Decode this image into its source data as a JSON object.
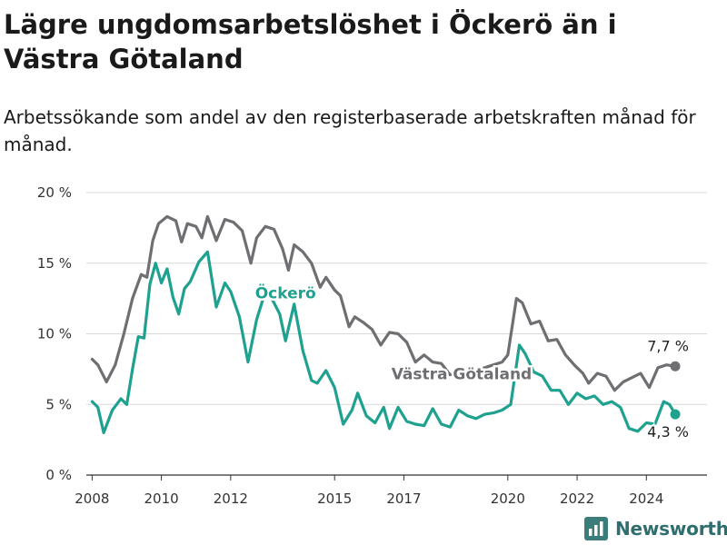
{
  "header": {
    "title": "Lägre ungdomsarbetslöshet i Öckerö än i Västra Götaland",
    "subtitle": "Arbetssökande som andel av den registerbaserade arbetskraften månad för månad."
  },
  "brand": {
    "name": "Newsworthy",
    "icon": "newsworthy-logo-icon",
    "color": "#2f6e6e"
  },
  "chart_data": {
    "type": "line",
    "x_ticks": [
      "2008",
      "2010",
      "2012",
      "2015",
      "2017",
      "2020",
      "2022",
      "2024"
    ],
    "y_ticks": [
      {
        "value": 0,
        "label": "0 %"
      },
      {
        "value": 5,
        "label": "5 %"
      },
      {
        "value": 10,
        "label": "10 %"
      },
      {
        "value": 15,
        "label": "15 %"
      },
      {
        "value": 20,
        "label": "20 %"
      }
    ],
    "ylim": [
      0,
      20
    ],
    "xlim": [
      "2007-11",
      "2025-10"
    ],
    "grid": true,
    "series": [
      {
        "name": "Västra Götaland",
        "color": "#6f6f73",
        "end_label": "7,7 %",
        "points": [
          [
            "2008-01",
            8.2
          ],
          [
            "2008-03",
            7.8
          ],
          [
            "2008-06",
            6.6
          ],
          [
            "2008-09",
            7.8
          ],
          [
            "2008-12",
            10.0
          ],
          [
            "2009-03",
            12.5
          ],
          [
            "2009-06",
            14.2
          ],
          [
            "2009-08",
            14.0
          ],
          [
            "2009-10",
            16.6
          ],
          [
            "2009-12",
            17.8
          ],
          [
            "2010-03",
            18.3
          ],
          [
            "2010-06",
            18.0
          ],
          [
            "2010-08",
            16.5
          ],
          [
            "2010-10",
            17.8
          ],
          [
            "2011-01",
            17.6
          ],
          [
            "2011-03",
            16.8
          ],
          [
            "2011-05",
            18.3
          ],
          [
            "2011-08",
            16.6
          ],
          [
            "2011-11",
            18.1
          ],
          [
            "2012-02",
            17.9
          ],
          [
            "2012-05",
            17.3
          ],
          [
            "2012-08",
            15.0
          ],
          [
            "2012-10",
            16.8
          ],
          [
            "2013-01",
            17.6
          ],
          [
            "2013-04",
            17.4
          ],
          [
            "2013-07",
            16.0
          ],
          [
            "2013-09",
            14.5
          ],
          [
            "2013-11",
            16.3
          ],
          [
            "2014-02",
            15.8
          ],
          [
            "2014-05",
            15.0
          ],
          [
            "2014-08",
            13.3
          ],
          [
            "2014-10",
            14.0
          ],
          [
            "2015-01",
            13.1
          ],
          [
            "2015-03",
            12.7
          ],
          [
            "2015-06",
            10.5
          ],
          [
            "2015-08",
            11.2
          ],
          [
            "2015-11",
            10.8
          ],
          [
            "2016-02",
            10.3
          ],
          [
            "2016-05",
            9.2
          ],
          [
            "2016-08",
            10.1
          ],
          [
            "2016-11",
            10.0
          ],
          [
            "2017-02",
            9.4
          ],
          [
            "2017-05",
            8.0
          ],
          [
            "2017-08",
            8.5
          ],
          [
            "2017-11",
            8.0
          ],
          [
            "2018-02",
            7.9
          ],
          [
            "2018-05",
            7.1
          ],
          [
            "2018-08",
            7.2
          ],
          [
            "2018-11",
            7.3
          ],
          [
            "2019-02",
            7.4
          ],
          [
            "2019-05",
            7.6
          ],
          [
            "2019-08",
            7.8
          ],
          [
            "2019-11",
            8.0
          ],
          [
            "2020-01",
            8.5
          ],
          [
            "2020-04",
            12.5
          ],
          [
            "2020-06",
            12.2
          ],
          [
            "2020-09",
            10.7
          ],
          [
            "2020-12",
            10.9
          ],
          [
            "2021-03",
            9.5
          ],
          [
            "2021-06",
            9.6
          ],
          [
            "2021-09",
            8.5
          ],
          [
            "2021-12",
            7.8
          ],
          [
            "2022-03",
            7.2
          ],
          [
            "2022-05",
            6.5
          ],
          [
            "2022-08",
            7.2
          ],
          [
            "2022-11",
            7.0
          ],
          [
            "2023-02",
            6.0
          ],
          [
            "2023-05",
            6.6
          ],
          [
            "2023-08",
            6.9
          ],
          [
            "2023-11",
            7.2
          ],
          [
            "2024-02",
            6.2
          ],
          [
            "2024-05",
            7.6
          ],
          [
            "2024-08",
            7.8
          ],
          [
            "2024-11",
            7.7
          ]
        ]
      },
      {
        "name": "Öckerö",
        "color": "#1fa190",
        "end_label": "4,3 %",
        "points": [
          [
            "2008-01",
            5.2
          ],
          [
            "2008-03",
            4.8
          ],
          [
            "2008-05",
            3.0
          ],
          [
            "2008-08",
            4.6
          ],
          [
            "2008-11",
            5.4
          ],
          [
            "2009-01",
            5.0
          ],
          [
            "2009-03",
            7.5
          ],
          [
            "2009-05",
            9.8
          ],
          [
            "2009-07",
            9.7
          ],
          [
            "2009-09",
            13.5
          ],
          [
            "2009-11",
            15.0
          ],
          [
            "2010-01",
            13.6
          ],
          [
            "2010-03",
            14.6
          ],
          [
            "2010-05",
            12.6
          ],
          [
            "2010-07",
            11.4
          ],
          [
            "2010-09",
            13.2
          ],
          [
            "2010-11",
            13.7
          ],
          [
            "2011-02",
            15.1
          ],
          [
            "2011-05",
            15.8
          ],
          [
            "2011-08",
            11.9
          ],
          [
            "2011-11",
            13.6
          ],
          [
            "2012-01",
            13.0
          ],
          [
            "2012-04",
            11.2
          ],
          [
            "2012-07",
            8.0
          ],
          [
            "2012-10",
            11.0
          ],
          [
            "2013-01",
            13.0
          ],
          [
            "2013-03",
            12.6
          ],
          [
            "2013-06",
            11.4
          ],
          [
            "2013-08",
            9.5
          ],
          [
            "2013-11",
            12.1
          ],
          [
            "2014-02",
            8.8
          ],
          [
            "2014-05",
            6.7
          ],
          [
            "2014-07",
            6.5
          ],
          [
            "2014-10",
            7.4
          ],
          [
            "2015-01",
            6.2
          ],
          [
            "2015-04",
            3.6
          ],
          [
            "2015-07",
            4.6
          ],
          [
            "2015-09",
            5.8
          ],
          [
            "2015-12",
            4.2
          ],
          [
            "2016-03",
            3.7
          ],
          [
            "2016-06",
            4.8
          ],
          [
            "2016-08",
            3.3
          ],
          [
            "2016-11",
            4.8
          ],
          [
            "2017-02",
            3.8
          ],
          [
            "2017-05",
            3.6
          ],
          [
            "2017-08",
            3.5
          ],
          [
            "2017-11",
            4.7
          ],
          [
            "2018-02",
            3.6
          ],
          [
            "2018-05",
            3.4
          ],
          [
            "2018-08",
            4.6
          ],
          [
            "2018-11",
            4.2
          ],
          [
            "2019-02",
            4.0
          ],
          [
            "2019-05",
            4.3
          ],
          [
            "2019-08",
            4.4
          ],
          [
            "2019-11",
            4.6
          ],
          [
            "2020-02",
            5.0
          ],
          [
            "2020-05",
            9.2
          ],
          [
            "2020-07",
            8.6
          ],
          [
            "2020-10",
            7.3
          ],
          [
            "2021-01",
            7.0
          ],
          [
            "2021-04",
            6.0
          ],
          [
            "2021-07",
            6.0
          ],
          [
            "2021-10",
            5.0
          ],
          [
            "2022-01",
            5.8
          ],
          [
            "2022-04",
            5.4
          ],
          [
            "2022-07",
            5.6
          ],
          [
            "2022-10",
            5.0
          ],
          [
            "2023-01",
            5.2
          ],
          [
            "2023-04",
            4.8
          ],
          [
            "2023-07",
            3.3
          ],
          [
            "2023-10",
            3.1
          ],
          [
            "2024-01",
            3.7
          ],
          [
            "2024-04",
            3.6
          ],
          [
            "2024-07",
            5.2
          ],
          [
            "2024-09",
            5.0
          ],
          [
            "2024-11",
            4.3
          ]
        ]
      }
    ],
    "annotations": [
      {
        "series": 0,
        "text": "Västra Götaland",
        "x": "2018-09",
        "y": 6.8
      },
      {
        "series": 1,
        "text": "Öckerö",
        "x": "2013-08",
        "y": 12.5
      }
    ]
  }
}
